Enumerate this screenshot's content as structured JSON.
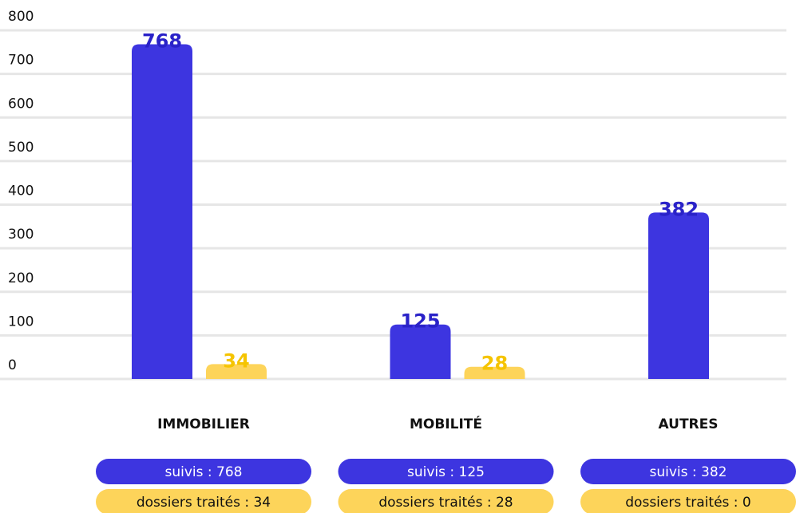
{
  "chart_data": {
    "type": "bar",
    "categories": [
      "IMMOBILIER",
      "MOBILITÉ",
      "AUTRES"
    ],
    "series": [
      {
        "name": "suivis",
        "color": "#3d35e0",
        "values": [
          768,
          125,
          382
        ],
        "value_labels": [
          "suivis : 768",
          "suivis : 125",
          "suivis : 382"
        ]
      },
      {
        "name": "dossiers traités",
        "color": "#fdd45a",
        "values": [
          34,
          28,
          0
        ],
        "value_labels": [
          "dossiers traités : 34",
          "dossiers traités : 28",
          "dossiers traités : 0"
        ]
      }
    ],
    "ylim": [
      0,
      800
    ],
    "yticks": [
      0,
      100,
      200,
      300,
      400,
      500,
      600,
      700,
      800
    ],
    "grid": true
  }
}
